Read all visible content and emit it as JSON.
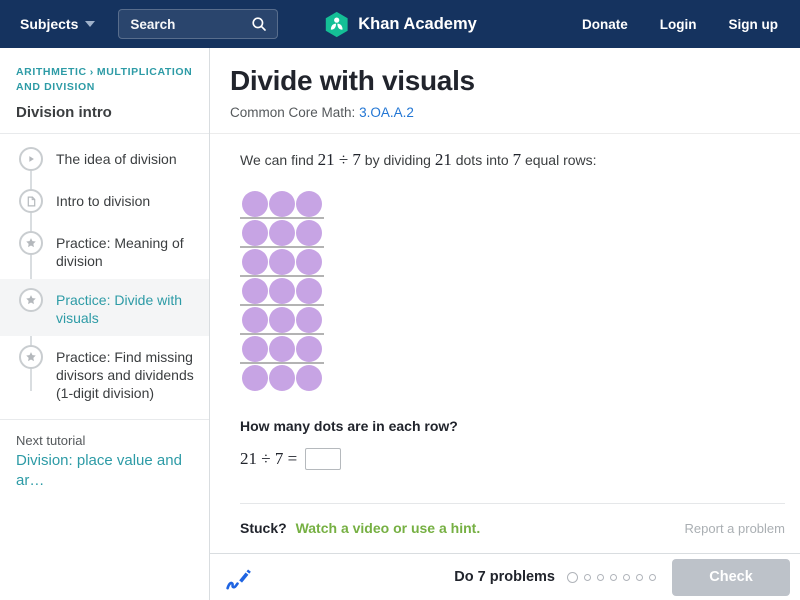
{
  "navbar": {
    "subjects_label": "Subjects",
    "search_placeholder": "Search",
    "brand": "Khan Academy",
    "links": {
      "donate": "Donate",
      "login": "Login",
      "signup": "Sign up"
    }
  },
  "sidebar": {
    "breadcrumb": {
      "part1": "ARITHMETIC",
      "separator": "›",
      "part2": "MULTIPLICATION AND DIVISION"
    },
    "tutorial_title": "Division intro",
    "items": [
      {
        "label": "The idea of division",
        "icon": "play",
        "active": false
      },
      {
        "label": "Intro to division",
        "icon": "article",
        "active": false
      },
      {
        "label": "Practice: Meaning of division",
        "icon": "star",
        "active": false
      },
      {
        "label": "Practice: Divide with visuals",
        "icon": "star",
        "active": true
      },
      {
        "label": "Practice: Find missing divisors and dividends (1-digit division)",
        "icon": "star",
        "active": false
      }
    ],
    "next_tutorial_label": "Next tutorial",
    "next_tutorial_link": "Division: place value and ar…"
  },
  "main": {
    "title": "Divide with visuals",
    "standard_prefix": "Common Core Math:",
    "standard_link": "3.OA.A.2",
    "prompt": {
      "p1": "We can find",
      "m1": "21 ÷ 7",
      "p2": "by dividing",
      "m2": "21",
      "p3": "dots into",
      "m3": "7",
      "p4": "equal rows:"
    },
    "dots": {
      "rows": 7,
      "cols": 3,
      "total": 21,
      "color": "#c7a4e4"
    },
    "question": "How many dots are in each row?",
    "equation": "21 ÷ 7 =",
    "answer_value": "",
    "stuck_label": "Stuck?",
    "hint_link": "Watch a video or use a hint.",
    "report_link": "Report a problem"
  },
  "footer": {
    "task_label": "Do 7 problems",
    "problem_count": 7,
    "problems_done": 0,
    "check_label": "Check"
  },
  "colors": {
    "navbar_bg": "#15335f",
    "brand_green": "#14bf96",
    "accent_teal": "#2d9ba6",
    "link_blue": "#2276d4",
    "hint_green": "#76b043",
    "dot_purple": "#c7a4e4",
    "row_line_gray": "#b3b3b3",
    "check_disabled_bg": "#bdc2c9",
    "pencil_blue": "#1f64e2"
  }
}
